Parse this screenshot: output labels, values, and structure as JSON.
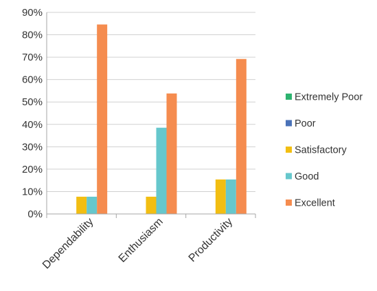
{
  "chart_data": {
    "type": "bar",
    "title": "",
    "xlabel": "",
    "ylabel": "",
    "ylim": [
      0,
      90
    ],
    "yticks": [
      "0%",
      "10%",
      "20%",
      "30%",
      "40%",
      "50%",
      "60%",
      "70%",
      "80%",
      "90%"
    ],
    "categories": [
      "Dependability",
      "Enthusiasm",
      "Productivity"
    ],
    "series": [
      {
        "name": "Extremely Poor",
        "color": "#2db36f",
        "values": [
          0,
          0,
          0
        ]
      },
      {
        "name": "Poor",
        "color": "#4a72b8",
        "values": [
          0,
          0,
          0
        ]
      },
      {
        "name": "Satisfactory",
        "color": "#f2be12",
        "values": [
          7.7,
          7.7,
          15.4
        ]
      },
      {
        "name": "Good",
        "color": "#66c7cc",
        "values": [
          7.7,
          38.5,
          15.4
        ]
      },
      {
        "name": "Excellent",
        "color": "#f58c4f",
        "values": [
          84.6,
          53.8,
          69.2
        ]
      }
    ],
    "grid": true,
    "legend": "right"
  }
}
